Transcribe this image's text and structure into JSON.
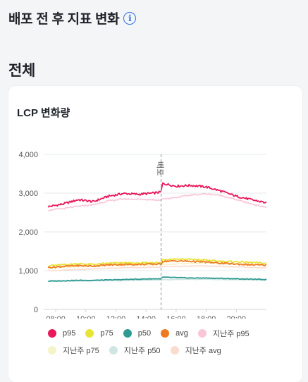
{
  "header": {
    "title": "배포 전 후 지표 변화",
    "info_icon": "info-circle-icon"
  },
  "section": {
    "title": "전체"
  },
  "card": {
    "title": "LCP 변화량"
  },
  "chart_data": {
    "type": "line",
    "title": "LCP 변화량",
    "x_range_hours": [
      7.2,
      22.0
    ],
    "x_ticks": [
      "08:00",
      "10:00",
      "12:00",
      "14:00",
      "16:00",
      "18:00",
      "20:00"
    ],
    "x_tick_hours": [
      8,
      10,
      12,
      14,
      16,
      18,
      20
    ],
    "y_ticks": [
      "0",
      "1,000",
      "2,000",
      "3,000",
      "4,000"
    ],
    "y_tick_values": [
      0,
      1000,
      2000,
      3000,
      4000
    ],
    "ylim": [
      0,
      4000
    ],
    "grid": true,
    "deploy_marker": {
      "label": "배포",
      "x_hour": 15.0
    },
    "legend_position": "bottom",
    "x_hours": [
      7.5,
      8.5,
      9.5,
      10.5,
      11.5,
      12.5,
      13.5,
      14.5,
      15.0,
      15.1,
      16.0,
      17.0,
      18.0,
      19.0,
      20.0,
      21.0,
      22.0
    ],
    "series": [
      {
        "name": "p95",
        "color": "#e8185a",
        "values": [
          2650,
          2720,
          2830,
          2780,
          2920,
          2990,
          2970,
          3000,
          3030,
          3250,
          3180,
          3200,
          3160,
          3050,
          2920,
          2830,
          2750
        ]
      },
      {
        "name": "p75",
        "color": "#e8e337",
        "values": [
          1130,
          1150,
          1180,
          1160,
          1190,
          1200,
          1190,
          1210,
          1200,
          1290,
          1300,
          1290,
          1270,
          1240,
          1230,
          1210,
          1190
        ]
      },
      {
        "name": "p50",
        "color": "#2f9a92",
        "values": [
          730,
          740,
          750,
          750,
          760,
          770,
          780,
          790,
          790,
          830,
          820,
          810,
          810,
          800,
          790,
          780,
          770
        ]
      },
      {
        "name": "avg",
        "color": "#f07a1f",
        "values": [
          1080,
          1110,
          1130,
          1120,
          1150,
          1160,
          1160,
          1170,
          1170,
          1240,
          1250,
          1240,
          1220,
          1190,
          1170,
          1150,
          1140
        ]
      },
      {
        "name": "지난주 p95",
        "color": "#f8c6d8",
        "values": [
          2560,
          2600,
          2660,
          2700,
          2800,
          2850,
          2840,
          2830,
          2820,
          2850,
          2890,
          2950,
          2980,
          2940,
          2830,
          2720,
          2630
        ]
      },
      {
        "name": "지난주 p75",
        "color": "#f5f3c8",
        "values": [
          1070,
          1080,
          1100,
          1100,
          1120,
          1140,
          1150,
          1150,
          1150,
          1160,
          1170,
          1190,
          1200,
          1190,
          1170,
          1150,
          1130
        ]
      },
      {
        "name": "지난주 p50",
        "color": "#cfe6e4",
        "values": [
          720,
          725,
          730,
          735,
          740,
          745,
          750,
          755,
          760,
          765,
          770,
          775,
          775,
          770,
          765,
          760,
          755
        ]
      },
      {
        "name": "지난주 avg",
        "color": "#fadccf",
        "values": [
          1000,
          1010,
          1030,
          1040,
          1060,
          1080,
          1080,
          1090,
          1090,
          1100,
          1110,
          1120,
          1120,
          1110,
          1100,
          1080,
          1070
        ]
      }
    ]
  }
}
